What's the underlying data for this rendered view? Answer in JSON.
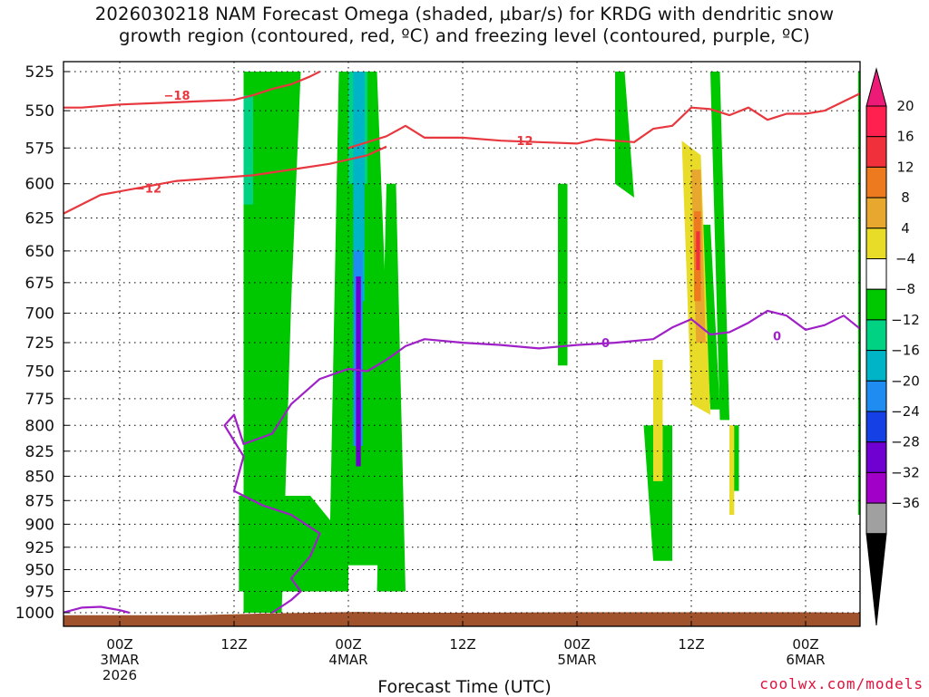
{
  "title_line1": "2026030218 NAM Forecast Omega (shaded, μbar/s) for KRDG with dendritic snow",
  "title_line2": "growth region (contoured, red, ºC) and freezing level (contoured, purple, ºC)",
  "xlabel": "Forecast Time (UTC)",
  "credit": "coolwx.com/models",
  "chart_data": {
    "type": "heatmap",
    "title": "2026030218 NAM Forecast Omega (shaded, μbar/s) for KRDG with dendritic snow growth region (contoured, red, ºC) and freezing level (contoured, purple, ºC)",
    "xlabel": "Forecast Time (UTC)",
    "ylabel": "Pressure (mb)",
    "xlim_hours": [
      -6,
      78
    ],
    "ylim_mb": [
      1010,
      517
    ],
    "y_ticks": [
      525,
      550,
      575,
      600,
      625,
      650,
      675,
      700,
      725,
      750,
      775,
      800,
      825,
      850,
      875,
      900,
      925,
      950,
      975,
      1000
    ],
    "x_ticks": [
      {
        "hour": 0,
        "lines": [
          "00Z",
          "3MAR",
          "2026"
        ]
      },
      {
        "hour": 12,
        "lines": [
          "12Z"
        ]
      },
      {
        "hour": 24,
        "lines": [
          "00Z",
          "4MAR"
        ]
      },
      {
        "hour": 36,
        "lines": [
          "12Z"
        ]
      },
      {
        "hour": 48,
        "lines": [
          "00Z",
          "5MAR"
        ]
      },
      {
        "hour": 60,
        "lines": [
          "12Z"
        ]
      },
      {
        "hour": 72,
        "lines": [
          "00Z",
          "6MAR"
        ]
      }
    ],
    "grid": true,
    "colorbar": {
      "labels": [
        "20",
        "16",
        "12",
        "8",
        "4",
        "−4",
        "−8",
        "−12",
        "−16",
        "−20",
        "−24",
        "−28",
        "−32",
        "−36"
      ],
      "colors": [
        "#ff2050",
        "#f0303a",
        "#ee7a20",
        "#e8a830",
        "#e8dc28",
        "#ffffff",
        "#00c800",
        "#00d284",
        "#00b4c8",
        "#1e8cf0",
        "#1440e6",
        "#7000d2",
        "#a000c8",
        "#a0a0a0"
      ],
      "over_color": "#ee1a78",
      "under_color": "#000000"
    },
    "terrain_color": "#a0522d",
    "terrain": [
      [
        -6,
        1003
      ],
      [
        8,
        1003
      ],
      [
        15,
        1001
      ],
      [
        25,
        999
      ],
      [
        30,
        1000
      ],
      [
        36,
        1000
      ],
      [
        48,
        999.5
      ],
      [
        60,
        999.5
      ],
      [
        72,
        999.5
      ],
      [
        78,
        1000
      ]
    ],
    "omega_regions": [
      {
        "value": -6,
        "color": "#00c800",
        "poly": [
          [
            13,
            1000
          ],
          [
            13,
            525
          ],
          [
            19,
            525
          ],
          [
            18,
            690
          ],
          [
            17,
            1000
          ]
        ]
      },
      {
        "value": -6,
        "color": "#00c800",
        "poly": [
          [
            12.5,
            870
          ],
          [
            20,
            870
          ],
          [
            24,
            920
          ],
          [
            24,
            975
          ],
          [
            12.5,
            975
          ]
        ]
      },
      {
        "value": -6,
        "color": "#00c800",
        "poly": [
          [
            22,
            945
          ],
          [
            23,
            525
          ],
          [
            27,
            525
          ],
          [
            29,
            945
          ]
        ]
      },
      {
        "value": -6,
        "color": "#00c800",
        "poly": [
          [
            27,
            975
          ],
          [
            28,
            600
          ],
          [
            29,
            600
          ],
          [
            30,
            975
          ]
        ]
      },
      {
        "value": -6,
        "color": "#00c800",
        "poly": [
          [
            46,
            600
          ],
          [
            47,
            600
          ],
          [
            47,
            745
          ],
          [
            46,
            745
          ]
        ]
      },
      {
        "value": -6,
        "color": "#00c800",
        "poly": [
          [
            52,
            525
          ],
          [
            53,
            525
          ],
          [
            54,
            610
          ],
          [
            52,
            600
          ]
        ]
      },
      {
        "value": -6,
        "color": "#00c800",
        "poly": [
          [
            55,
            800
          ],
          [
            58,
            800
          ],
          [
            58,
            940
          ],
          [
            56,
            940
          ]
        ]
      },
      {
        "value": -6,
        "color": "#00c800",
        "poly": [
          [
            61,
            630
          ],
          [
            62,
            630
          ],
          [
            63,
            785
          ],
          [
            62,
            785
          ]
        ]
      },
      {
        "value": -6,
        "color": "#00c800",
        "poly": [
          [
            62,
            525
          ],
          [
            63,
            525
          ],
          [
            64,
            795
          ],
          [
            63,
            795
          ]
        ]
      },
      {
        "value": -6,
        "color": "#00c800",
        "poly": [
          [
            64,
            800
          ],
          [
            65,
            800
          ],
          [
            65,
            865
          ],
          [
            64,
            865
          ]
        ]
      },
      {
        "value": -6,
        "color": "#00c800",
        "poly": [
          [
            77.5,
            525
          ],
          [
            78,
            525
          ],
          [
            78,
            890
          ],
          [
            77.5,
            890
          ]
        ]
      },
      {
        "value": -10,
        "color": "#00d284",
        "poly": [
          [
            13,
            540
          ],
          [
            14,
            540
          ],
          [
            14,
            615
          ],
          [
            13,
            615
          ]
        ]
      },
      {
        "value": -10,
        "color": "#00d284",
        "poly": [
          [
            24,
            525
          ],
          [
            26,
            525
          ],
          [
            26,
            600
          ],
          [
            24,
            600
          ]
        ]
      },
      {
        "value": -14,
        "color": "#00b4c8",
        "poly": [
          [
            24.5,
            525
          ],
          [
            25.7,
            525
          ],
          [
            25.7,
            690
          ],
          [
            24.5,
            690
          ]
        ]
      },
      {
        "value": -18,
        "color": "#1e8cf0",
        "poly": [
          [
            24.5,
            650
          ],
          [
            25.5,
            650
          ],
          [
            25.5,
            820
          ],
          [
            24.5,
            820
          ]
        ]
      },
      {
        "value": -26,
        "color": "#7000d2",
        "poly": [
          [
            24.8,
            670
          ],
          [
            25.3,
            670
          ],
          [
            25.3,
            840
          ],
          [
            24.8,
            840
          ]
        ]
      },
      {
        "value": 6,
        "color": "#e8dc28",
        "poly": [
          [
            59,
            570
          ],
          [
            61,
            580
          ],
          [
            62,
            790
          ],
          [
            60,
            780
          ]
        ]
      },
      {
        "value": 6,
        "color": "#e8dc28",
        "poly": [
          [
            56,
            740
          ],
          [
            57,
            740
          ],
          [
            57,
            855
          ],
          [
            56,
            855
          ]
        ]
      },
      {
        "value": 6,
        "color": "#e8dc28",
        "poly": [
          [
            64,
            800
          ],
          [
            64.5,
            800
          ],
          [
            64.5,
            890
          ],
          [
            64,
            890
          ]
        ]
      },
      {
        "value": 10,
        "color": "#e8a830",
        "poly": [
          [
            60,
            590
          ],
          [
            61,
            590
          ],
          [
            61.5,
            725
          ],
          [
            60.5,
            725
          ]
        ]
      },
      {
        "value": 14,
        "color": "#ee7a20",
        "poly": [
          [
            60.3,
            620
          ],
          [
            61,
            620
          ],
          [
            61,
            690
          ],
          [
            60.3,
            690
          ]
        ]
      },
      {
        "value": 18,
        "color": "#f0303a",
        "poly": [
          [
            60.5,
            635
          ],
          [
            60.9,
            635
          ],
          [
            60.9,
            665
          ],
          [
            60.5,
            665
          ]
        ]
      }
    ],
    "contours": [
      {
        "name": "-18",
        "color": "#e8383f",
        "label": "−18",
        "label_at": [
          6,
          540
        ],
        "points": [
          [
            -6,
            548
          ],
          [
            -4,
            548
          ],
          [
            0,
            546
          ],
          [
            4,
            545
          ],
          [
            8,
            544
          ],
          [
            12,
            543
          ],
          [
            14,
            540
          ],
          [
            16,
            536
          ],
          [
            18,
            533
          ],
          [
            20,
            528
          ],
          [
            21,
            525
          ]
        ]
      },
      {
        "name": "-12 upper",
        "color": "#e8383f",
        "label": "−12",
        "label_at": [
          42,
          570
        ],
        "points": [
          [
            24,
            575
          ],
          [
            28,
            567
          ],
          [
            30,
            560
          ],
          [
            32,
            568
          ],
          [
            36,
            568
          ],
          [
            40,
            570
          ],
          [
            44,
            571
          ],
          [
            48,
            572
          ],
          [
            50,
            569
          ],
          [
            54,
            571
          ],
          [
            56,
            562
          ],
          [
            58,
            560
          ],
          [
            60,
            548
          ],
          [
            62,
            549
          ],
          [
            64,
            553
          ],
          [
            66,
            548
          ],
          [
            68,
            556
          ],
          [
            70,
            552
          ],
          [
            72,
            552
          ],
          [
            74,
            550
          ],
          [
            76,
            544
          ],
          [
            78,
            538
          ]
        ]
      },
      {
        "name": "-12 lower",
        "color": "#e8383f",
        "label": "−12",
        "label_at": [
          3,
          603
        ],
        "points": [
          [
            -6,
            622
          ],
          [
            -2,
            608
          ],
          [
            2,
            603
          ],
          [
            6,
            598
          ],
          [
            10,
            596
          ],
          [
            14,
            594
          ],
          [
            18,
            590
          ],
          [
            22,
            586
          ],
          [
            26,
            580
          ],
          [
            28,
            574
          ]
        ]
      },
      {
        "name": "0 freezing",
        "color": "#a020c8",
        "label": "0",
        "label_at": [
          51,
          725
        ],
        "points": [
          [
            -6,
            1000
          ],
          [
            -4,
            994
          ],
          [
            -2,
            993
          ],
          [
            0,
            997
          ],
          [
            1,
            1000
          ]
        ]
      },
      {
        "name": "0 freezing main",
        "color": "#a020c8",
        "label": "0",
        "label_at": [
          69,
          719
        ],
        "points": [
          [
            16,
            1000
          ],
          [
            18,
            985
          ],
          [
            19,
            975
          ],
          [
            18,
            960
          ],
          [
            20,
            935
          ],
          [
            21,
            910
          ],
          [
            18,
            890
          ],
          [
            15,
            880
          ],
          [
            12,
            865
          ],
          [
            13,
            830
          ],
          [
            11,
            800
          ],
          [
            12,
            790
          ],
          [
            13,
            818
          ],
          [
            16,
            808
          ],
          [
            18,
            780
          ],
          [
            21,
            757
          ],
          [
            24,
            748
          ],
          [
            26,
            750
          ],
          [
            28,
            740
          ],
          [
            30,
            728
          ],
          [
            32,
            722
          ],
          [
            36,
            725
          ],
          [
            40,
            727
          ],
          [
            44,
            730
          ],
          [
            48,
            727
          ],
          [
            52,
            725
          ],
          [
            56,
            722
          ],
          [
            58,
            712
          ],
          [
            60,
            705
          ],
          [
            62,
            718
          ],
          [
            64,
            716
          ],
          [
            66,
            708
          ],
          [
            68,
            698
          ],
          [
            70,
            702
          ],
          [
            72,
            714
          ],
          [
            74,
            710
          ],
          [
            76,
            702
          ],
          [
            78,
            715
          ]
        ]
      }
    ]
  }
}
